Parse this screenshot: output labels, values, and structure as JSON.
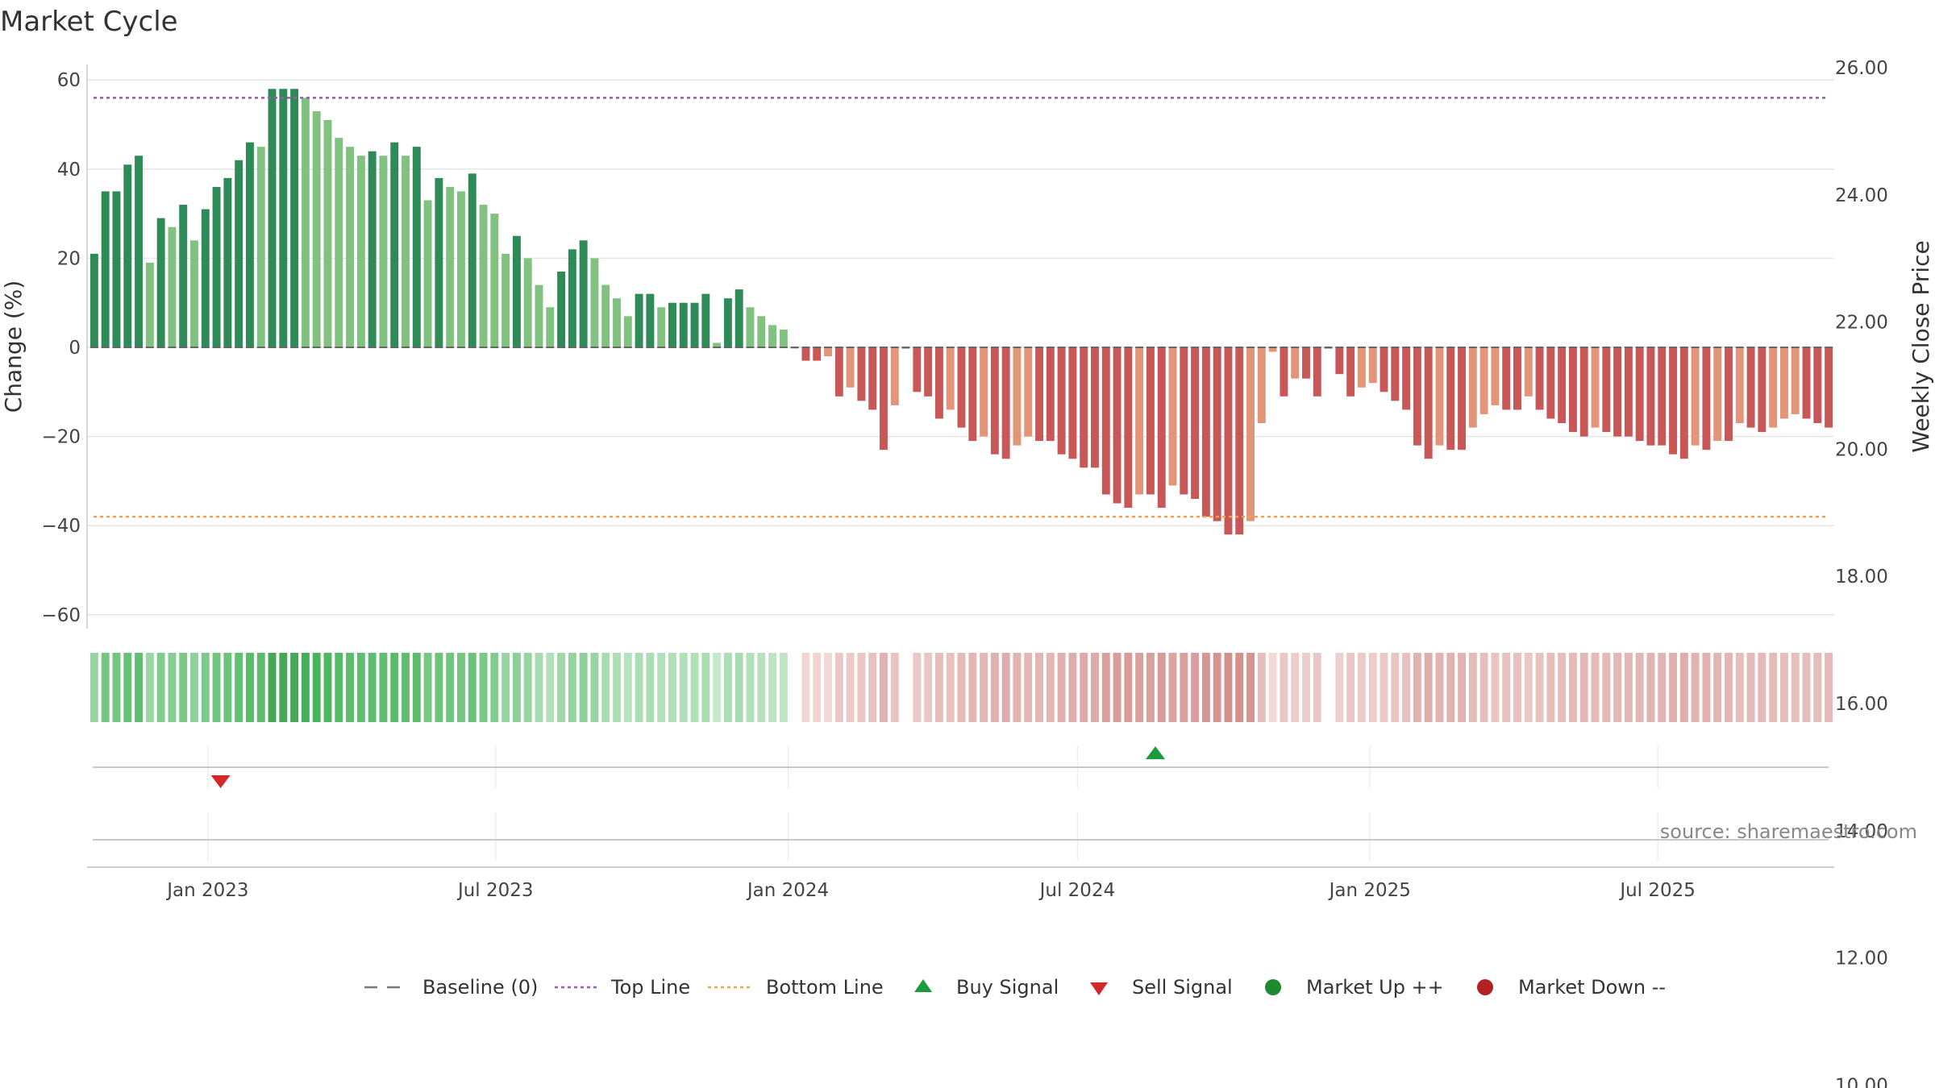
{
  "chart_data": {
    "type": "bar",
    "title": "Market Cycle",
    "ylabel": "Change (%)",
    "y2label": "Weekly Close Price",
    "ylim": [
      -65,
      65
    ],
    "yticks": [
      60,
      40,
      20,
      0,
      -20,
      -40,
      -60
    ],
    "yticklabels": [
      "60",
      "40",
      "20",
      "0",
      "−20",
      "−40",
      "−60"
    ],
    "y2lim": [
      8.5,
      26.5
    ],
    "y2ticks": [
      26,
      24,
      22,
      20,
      18,
      16,
      14,
      12,
      10
    ],
    "y2ticklabels": [
      "26.00",
      "24.00",
      "22.00",
      "20.00",
      "18.00",
      "16.00",
      "14.00",
      "12.00",
      "10.00"
    ],
    "x_start": "2022-10-17",
    "x_end": "2025-10-20",
    "xticks": [
      "2023-01-01",
      "2023-07-01",
      "2024-01-01",
      "2024-07-01",
      "2025-01-01",
      "2025-07-01"
    ],
    "xticklabels": [
      "Jan 2023",
      "Jul 2023",
      "Jan 2024",
      "Jul 2024",
      "Jan 2025",
      "Jul 2025"
    ],
    "top_line": 56,
    "bottom_line": -38,
    "grid": true,
    "legend_position": "bottom-center",
    "first_week": "2022-10-17",
    "change_values": [
      21,
      35,
      35,
      41,
      43,
      19,
      29,
      27,
      32,
      24,
      31,
      36,
      38,
      42,
      46,
      45,
      58,
      58,
      58,
      56,
      53,
      51,
      47,
      45,
      43,
      44,
      43,
      46,
      43,
      45,
      33,
      38,
      36,
      35,
      39,
      32,
      30,
      21,
      25,
      20,
      14,
      9,
      17,
      22,
      24,
      20,
      14,
      11,
      7,
      12,
      12,
      9,
      10,
      10,
      10,
      12,
      1,
      11,
      13,
      9,
      7,
      5,
      4,
      0,
      -3,
      -3,
      -2,
      -11,
      -9,
      -12,
      -14,
      -23,
      -13,
      0,
      -10,
      -11,
      -16,
      -14,
      -18,
      -21,
      -20,
      -24,
      -25,
      -22,
      -20,
      -21,
      -21,
      -24,
      -25,
      -27,
      -27,
      -33,
      -35,
      -36,
      -33,
      -33,
      -36,
      -31,
      -33,
      -34,
      -38,
      -39,
      -42,
      -42,
      -39,
      -17,
      -1,
      -11,
      -7,
      -7,
      -11,
      0,
      -6,
      -11,
      -9,
      -8,
      -10,
      -12,
      -14,
      -22,
      -25,
      -22,
      -23,
      -23,
      -18,
      -15,
      -13,
      -14,
      -14,
      -11,
      -14,
      -16,
      -17,
      -19,
      -20,
      -18,
      -19,
      -20,
      -20,
      -21,
      -22,
      -22,
      -24,
      -25,
      -22,
      -23,
      -21,
      -21,
      -17,
      -18,
      -19,
      -18,
      -16,
      -15,
      -16,
      -17,
      -18
    ],
    "weekly_close_price": [],
    "buy_signals": [
      {
        "date": "2024-08-19",
        "label": "Buy Signal"
      }
    ],
    "sell_signals": [
      {
        "date": "2023-01-09",
        "label": "Sell Signal"
      }
    ],
    "series": [
      {
        "name": "Baseline (0)",
        "style": "dashed",
        "color": "#777777"
      },
      {
        "name": "Top Line",
        "style": "dotted",
        "color": "#9b59b6"
      },
      {
        "name": "Bottom Line",
        "style": "dotted",
        "color": "#f0a050"
      },
      {
        "name": "Buy Signal",
        "marker": "triangle-up",
        "color": "#1a9c3a"
      },
      {
        "name": "Sell Signal",
        "marker": "triangle-down",
        "color": "#d62728"
      },
      {
        "name": "Market Up ++",
        "marker": "circle",
        "color": "#1e8a2e"
      },
      {
        "name": "Market Down --",
        "marker": "circle",
        "color": "#b22222"
      }
    ]
  },
  "source": "source: sharemaestro.com",
  "colors": {
    "up_dark": "#2e8b57",
    "up_light": "#82c281",
    "down_dark": "#c85858",
    "down_light": "#e3957a",
    "top_line": "#9b59b6",
    "bottom_line": "#f0a050",
    "baseline": "#777777",
    "grid": "#e6e6e6"
  }
}
